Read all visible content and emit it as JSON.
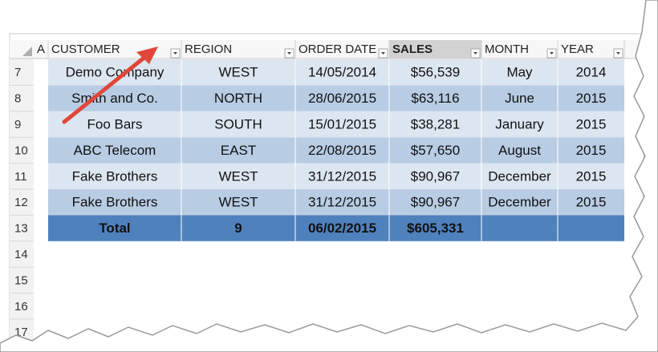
{
  "sheet": {
    "columns": [
      "A",
      "CUSTOMER",
      "REGION",
      "ORDER DATE",
      "SALES",
      "MONTH",
      "YEAR"
    ],
    "rows": [
      {
        "number": "7",
        "cells": [
          "Demo Company",
          "WEST",
          "14/05/2014",
          "$56,539",
          "May",
          "2014"
        ]
      },
      {
        "number": "8",
        "cells": [
          "Smith and Co.",
          "NORTH",
          "28/06/2015",
          "$63,116",
          "June",
          "2015"
        ]
      },
      {
        "number": "9",
        "cells": [
          "Foo Bars",
          "SOUTH",
          "15/01/2015",
          "$38,281",
          "January",
          "2015"
        ]
      },
      {
        "number": "10",
        "cells": [
          "ABC Telecom",
          "EAST",
          "22/08/2015",
          "$57,650",
          "August",
          "2015"
        ]
      },
      {
        "number": "11",
        "cells": [
          "Fake Brothers",
          "WEST",
          "31/12/2015",
          "$90,967",
          "December",
          "2015"
        ]
      },
      {
        "number": "12",
        "cells": [
          "Fake Brothers",
          "WEST",
          "31/12/2015",
          "$90,967",
          "December",
          "2015"
        ]
      }
    ],
    "total": {
      "number": "13",
      "cells": [
        "Total",
        "9",
        "06/02/2015",
        "$605,331"
      ]
    },
    "empty_rows": [
      "14",
      "15",
      "16",
      "17"
    ]
  }
}
